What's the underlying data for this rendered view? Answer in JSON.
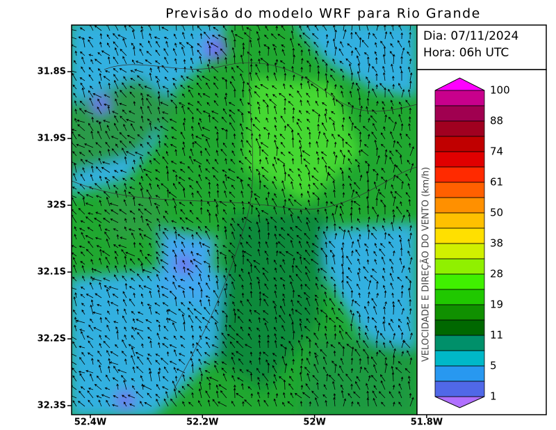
{
  "title": "Previsão do modelo WRF para Rio Grande",
  "info": {
    "date": "Dia: 07/11/2024",
    "hour": "Hora: 06h UTC"
  },
  "axes": {
    "y_labels": [
      "31.8S",
      "31.9S",
      "32S",
      "32.1S",
      "32.2S",
      "32.3S"
    ],
    "x_labels": [
      "52.4W",
      "52.2W",
      "52W",
      "51.8W"
    ]
  },
  "colorbar": {
    "title": "VELOCIDADE E DIREÇÃO DO VENTO (km/h)",
    "labels": [
      100,
      88,
      74,
      61,
      50,
      38,
      28,
      19,
      11,
      5,
      1
    ],
    "top_color": "#ff00ff",
    "bottom_color": "#b070ff",
    "colors": [
      "#c8008c",
      "#a00050",
      "#a00020",
      "#c00000",
      "#e00000",
      "#ff2a00",
      "#ff6000",
      "#ff9000",
      "#ffc000",
      "#ffe000",
      "#d0f000",
      "#90f000",
      "#40f000",
      "#20c800",
      "#109000",
      "#006800",
      "#00906a",
      "#00b8c8",
      "#2898f0",
      "#5068e8"
    ]
  }
}
